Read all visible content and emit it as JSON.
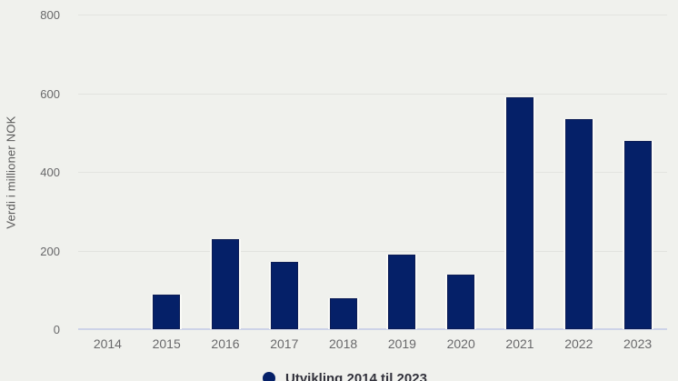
{
  "figure": {
    "background_color": "#F0F1ED",
    "bar_color": "#052068",
    "bar_border_color": "#0C1C55",
    "bar_gap_color": "#FAFAF7",
    "gridline_color": "#E2E3DF",
    "baseline_color": "#CDD3E8",
    "tick_label_color": "#68686A",
    "axis_title_color": "#595959",
    "legend_text_color": "#32323C"
  },
  "chart_data": {
    "type": "bar",
    "categories": [
      "2014",
      "2015",
      "2016",
      "2017",
      "2018",
      "2019",
      "2020",
      "2021",
      "2022",
      "2023"
    ],
    "values": [
      0,
      87,
      230,
      171,
      78,
      189,
      139,
      590,
      535,
      478
    ],
    "title": "",
    "xlabel": "",
    "ylabel": "Verdi i millioner NOK",
    "ylim": [
      0,
      800
    ],
    "yticks": [
      0,
      200,
      400,
      600,
      800
    ],
    "grid": true,
    "legend": {
      "position": "bottom",
      "entries": [
        {
          "label": "Utvikling 2014 til 2023",
          "marker": "circle",
          "color": "#052068"
        }
      ]
    }
  }
}
